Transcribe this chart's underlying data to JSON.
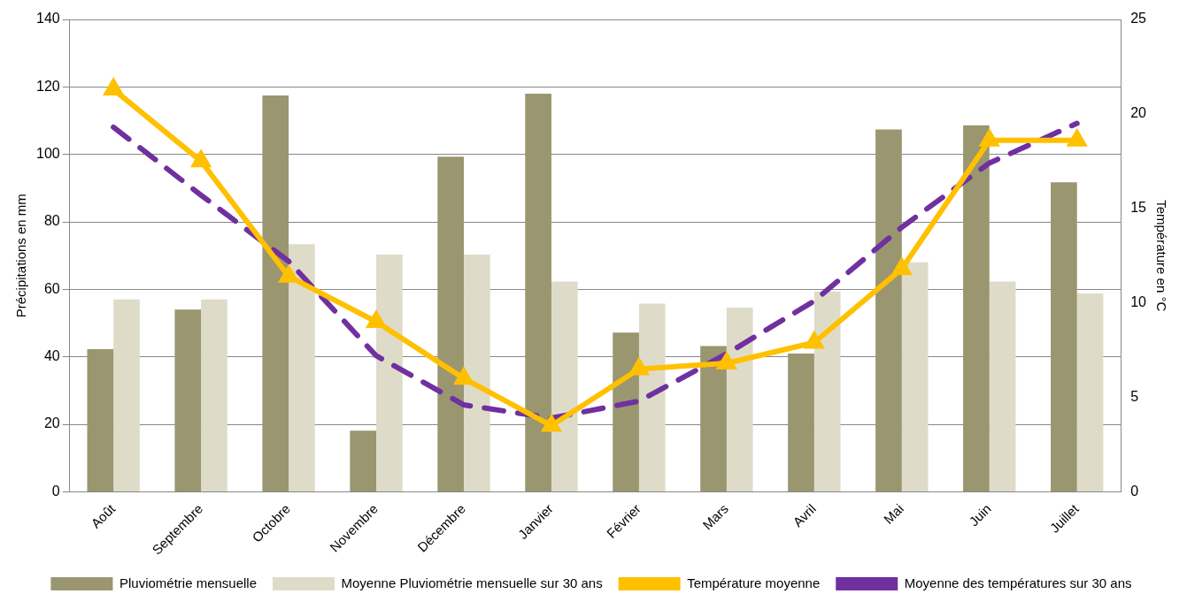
{
  "chart_data": {
    "type": "bar",
    "ylabel": "Précipitations en mm",
    "y2label": "Température en °C",
    "categories": [
      "Août",
      "Septembre",
      "Octobre",
      "Novembre",
      "Décembre",
      "Janvier",
      "Février",
      "Mars",
      "Avril",
      "Mai",
      "Juin",
      "Juillet"
    ],
    "series": [
      {
        "name": "Pluviométrie mensuelle",
        "color": "#9a9670",
        "values": [
          42.3,
          54,
          117.5,
          18.1,
          99.3,
          118,
          47.2,
          43.2,
          41,
          107.4,
          108.6,
          91.7
        ]
      },
      {
        "name": "Moyenne Pluviométrie mensuelle sur 30 ans",
        "color": "#dedcc9",
        "values": [
          57,
          57,
          73.4,
          70.3,
          70.3,
          62.3,
          55.8,
          54.6,
          59.4,
          68,
          62.3,
          58.8
        ]
      },
      {
        "name": "Température moyenne",
        "type": "line",
        "axis": "y2",
        "color": "#ffc000",
        "marker": "triangle",
        "line_style": "solid",
        "values": [
          21.3,
          17.5,
          11.4,
          9,
          6,
          3.5,
          6.5,
          6.8,
          7.9,
          11.8,
          18.6,
          18.6
        ]
      },
      {
        "name": "Moyenne des températures sur 30 ans",
        "type": "line",
        "axis": "y2",
        "color": "#7030a0",
        "marker": "none",
        "line_style": "dashed",
        "values": [
          19.3,
          15.7,
          12.2,
          7.2,
          4.6,
          3.9,
          4.8,
          7.3,
          10.1,
          14,
          17.4,
          19.5
        ]
      }
    ],
    "ylim": [
      0,
      140
    ],
    "yticks": [
      0,
      20,
      40,
      60,
      80,
      100,
      120,
      140
    ],
    "y2lim": [
      0,
      25
    ],
    "y2ticks": [
      0,
      5,
      10,
      15,
      20,
      25
    ],
    "grid": "y",
    "legend": "bottom"
  }
}
